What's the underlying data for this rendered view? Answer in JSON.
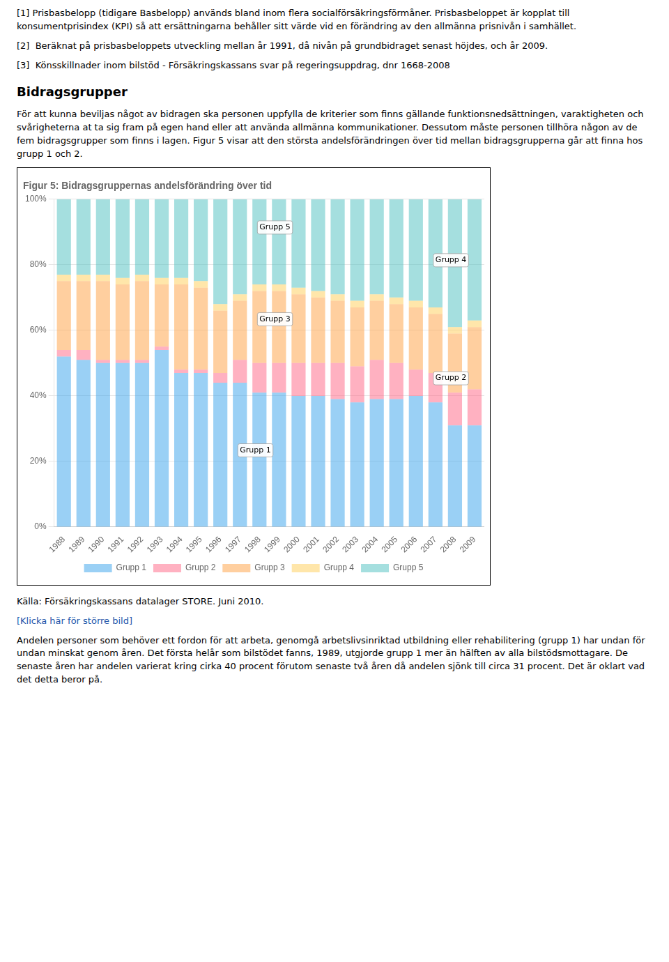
{
  "text_before": [
    "[1] Prisbasbelopp (tidigare Basbelopp) används bland inom flera socialförsäkringsförmåner. Prisbasbeloppet är kopplat till konsumentprisindex (KPI) så att ersättningarna behåller sitt värde vid en förändring av den allmänna prisnivån i samhället.",
    "[2]  Beräknat på prisbasbeloppets utveckling mellan år 1991, då nivån på grundbidraget senast höjdes, och år 2009.",
    "[3]  Könsskillnader inom bilstöd - Försäkringskassans svar på regeringsuppdrag, dnr 1668-2008"
  ],
  "heading": "Bidragsgrupper",
  "intro": "För att kunna beviljas något av bidragen ska personen uppfylla de kriterier som finns gällande funktionsnedsättningen, varaktigheten och svårigheterna at ta sig fram på egen hand eller att använda allmänna kommunikationer. Dessutom måste personen tillhöra någon av de fem bidragsgrupper som finns i lagen. Figur 5 visar att den största andelsförändringen över tid mellan bidragsgrupperna går att finna hos grupp 1 och 2.",
  "chart_data": {
    "type": "bar",
    "title": "Figur 5: Bidragsgruppernas andelsförändring över tid",
    "stacked": true,
    "grid": true,
    "legend": "bottom",
    "categories": [
      "1988",
      "1989",
      "1990",
      "1991",
      "1992",
      "1993",
      "1994",
      "1995",
      "1996",
      "1997",
      "1998",
      "1999",
      "2000",
      "2001",
      "2002",
      "2003",
      "2004",
      "2005",
      "2006",
      "2007",
      "2008",
      "2009"
    ],
    "series": [
      {
        "name": "Grupp 1",
        "values": [
          52,
          51,
          50,
          50,
          50,
          54,
          47,
          47,
          44,
          44,
          41,
          41,
          40,
          40,
          39,
          38,
          39,
          39,
          40,
          38,
          31,
          31
        ]
      },
      {
        "name": "Grupp 2",
        "values": [
          2,
          3,
          1,
          1,
          1,
          1,
          1,
          1,
          3,
          7,
          9,
          9,
          10,
          10,
          11,
          11,
          12,
          11,
          8,
          9,
          10,
          11
        ]
      },
      {
        "name": "Grupp 3",
        "values": [
          21,
          21,
          24,
          23,
          24,
          19,
          26,
          25,
          19,
          18,
          22,
          22,
          21,
          20,
          19,
          18,
          18,
          18,
          19,
          18,
          18,
          19
        ]
      },
      {
        "name": "Grupp 4",
        "values": [
          2,
          2,
          2,
          2,
          2,
          2,
          2,
          2,
          2,
          2,
          2,
          2,
          2,
          2,
          2,
          2,
          2,
          2,
          2,
          2,
          2,
          2
        ]
      },
      {
        "name": "Grupp 5",
        "values": [
          23,
          23,
          23,
          24,
          23,
          24,
          24,
          25,
          32,
          29,
          26,
          26,
          27,
          28,
          29,
          31,
          29,
          30,
          31,
          33,
          39,
          37
        ]
      }
    ],
    "ylim": [
      0,
      100
    ],
    "yticks": [
      {
        "value": 0,
        "label": "0%"
      },
      {
        "value": 20,
        "label": "20%"
      },
      {
        "value": 40,
        "label": "40%"
      },
      {
        "value": 60,
        "label": "60%"
      },
      {
        "value": 80,
        "label": "80%"
      },
      {
        "value": 100,
        "label": "100%"
      }
    ],
    "annotations": [
      {
        "text": "Grupp 1",
        "x": "1997",
        "y": 22
      },
      {
        "text": "Grupp 3",
        "x": "1998",
        "y": 62
      },
      {
        "text": "Grupp 5",
        "x": "1998",
        "y": 90
      },
      {
        "text": "Grupp 2",
        "x": "2007",
        "y": 44
      },
      {
        "text": "Grupp 4",
        "x": "2007",
        "y": 80
      }
    ]
  },
  "source": "Källa: Försäkringskassans datalager STORE. Juni 2010.",
  "link": "[Klicka här för större bild]",
  "text_after": [
    "Andelen personer som behöver ett fordon för att arbeta, genomgå arbetslivsinriktad utbildning eller rehabilitering (grupp 1) har undan för undan minskat genom åren. Det första helår som bilstödet fanns, 1989, utgjorde grupp 1 mer än hälften av alla bilstödsmottagare. De senaste åren har andelen varierat kring cirka 40 procent förutom senaste två åren då andelen sjönk till circa 31 procent. Det är oklart vad det detta beror på."
  ]
}
